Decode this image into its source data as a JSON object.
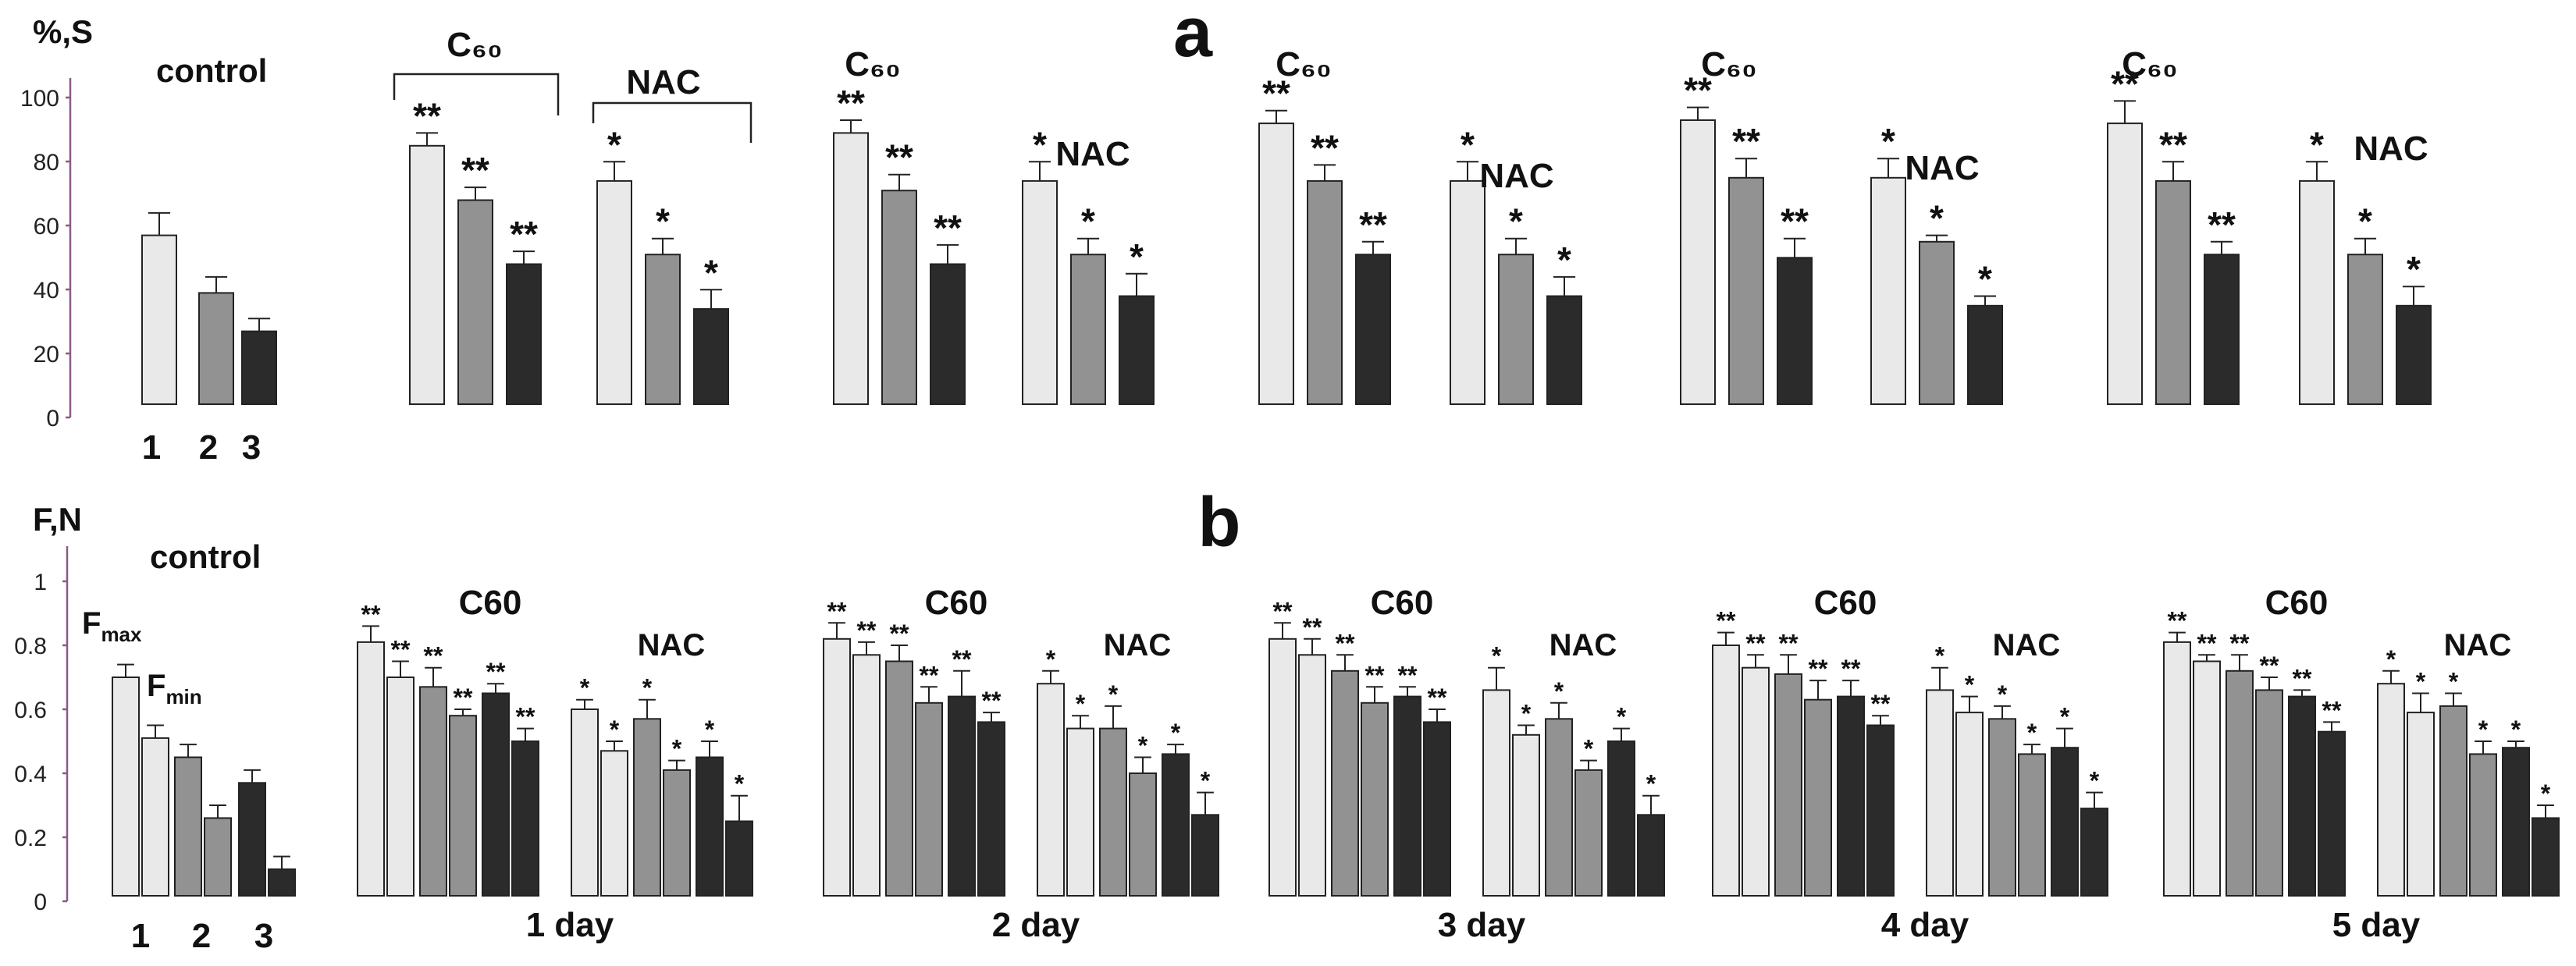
{
  "panel_labels": {
    "a": "a",
    "b": "b"
  },
  "colors": {
    "light": "#e9e9e9",
    "medium": "#929292",
    "dark": "#2b2b2b",
    "axis": "#8a5a86"
  },
  "chart_data": [
    {
      "type": "bar",
      "panel": "a",
      "ylabel": "%,S",
      "ylim": [
        0,
        100
      ],
      "yticks": [
        "0",
        "20",
        "40",
        "60",
        "80",
        "100"
      ],
      "control": {
        "label": "control",
        "categories": [
          "1",
          "2",
          "3"
        ],
        "values": [
          54,
          36,
          24
        ],
        "errors": [
          7,
          5,
          4
        ]
      },
      "groups": [
        {
          "group_label": "C60",
          "treatment": "C₆₀",
          "values": [
            82,
            65,
            45
          ],
          "errors": [
            4,
            4,
            4
          ],
          "marks": [
            "**",
            "**",
            "**"
          ]
        },
        {
          "group_label": "NAC",
          "treatment": "NAC",
          "values": [
            71,
            48,
            31
          ],
          "errors": [
            6,
            5,
            6
          ],
          "marks": [
            "*",
            "*",
            "*"
          ]
        },
        {
          "group_label": "C60",
          "treatment": "C₆₀",
          "values": [
            86,
            68,
            45
          ],
          "errors": [
            4,
            5,
            6
          ],
          "marks": [
            "**",
            "**",
            "**"
          ]
        },
        {
          "group_label": "NAC",
          "treatment": "NAC",
          "values": [
            71,
            48,
            35
          ],
          "errors": [
            6,
            5,
            7
          ],
          "marks": [
            "*",
            "*",
            "*"
          ]
        },
        {
          "group_label": "C60",
          "treatment": "C₆₀",
          "values": [
            89,
            71,
            48
          ],
          "errors": [
            4,
            5,
            4
          ],
          "marks": [
            "**",
            "**",
            "**"
          ]
        },
        {
          "group_label": "NAC",
          "treatment": "NAC",
          "values": [
            71,
            48,
            35
          ],
          "errors": [
            6,
            5,
            6
          ],
          "marks": [
            "*",
            "*",
            "*"
          ]
        },
        {
          "group_label": "C60",
          "treatment": "C₆₀",
          "values": [
            90,
            72,
            47
          ],
          "errors": [
            4,
            6,
            6
          ],
          "marks": [
            "**",
            "**",
            "**"
          ]
        },
        {
          "group_label": "NAC",
          "treatment": "NAC",
          "values": [
            72,
            52,
            32
          ],
          "errors": [
            6,
            2,
            3
          ],
          "marks": [
            "*",
            "*",
            "*"
          ]
        },
        {
          "group_label": "C60",
          "treatment": "C₆₀",
          "values": [
            89,
            71,
            48
          ],
          "errors": [
            7,
            6,
            4
          ],
          "marks": [
            "**",
            "**",
            "**"
          ]
        },
        {
          "group_label": "NAC",
          "treatment": "NAC",
          "values": [
            71,
            48,
            32
          ],
          "errors": [
            6,
            5,
            6
          ],
          "marks": [
            "*",
            "*",
            "*"
          ]
        }
      ]
    },
    {
      "type": "bar",
      "panel": "b",
      "ylabel": "F,N",
      "ylim": [
        0,
        1.1
      ],
      "yticks": [
        "0",
        "0.2",
        "0.4",
        "0.6",
        "0.8",
        "1"
      ],
      "legend": {
        "fmax": "F",
        "fmax_sub": "max",
        "fmin": "F",
        "fmin_sub": "min"
      },
      "control": {
        "label": "control",
        "categories": [
          "1",
          "2",
          "3"
        ],
        "pairs": [
          {
            "fmax": 0.7,
            "fmin": 0.51,
            "err_max": 0.04,
            "err_min": 0.04
          },
          {
            "fmax": 0.45,
            "fmin": 0.26,
            "err_max": 0.04,
            "err_min": 0.04
          },
          {
            "fmax": 0.37,
            "fmin": 0.1,
            "err_max": 0.04,
            "err_min": 0.04
          }
        ]
      },
      "days": [
        {
          "day_label": "1 day",
          "c60_label": "C60",
          "nac_label": "NAC",
          "c60": {
            "fmax": [
              0.81,
              0.67,
              0.65
            ],
            "fmin": [
              0.7,
              0.58,
              0.5
            ],
            "err_max": [
              0.05,
              0.06,
              0.03
            ],
            "err_min": [
              0.05,
              0.02,
              0.04
            ],
            "marks": "**"
          },
          "nac": {
            "fmax": [
              0.6,
              0.57,
              0.45
            ],
            "fmin": [
              0.47,
              0.41,
              0.25
            ],
            "err_max": [
              0.03,
              0.06,
              0.05
            ],
            "err_min": [
              0.03,
              0.03,
              0.08
            ],
            "marks": "*"
          }
        },
        {
          "day_label": "2 day",
          "c60_label": "C60",
          "nac_label": "NAC",
          "c60": {
            "fmax": [
              0.82,
              0.75,
              0.64
            ],
            "fmin": [
              0.77,
              0.62,
              0.56
            ],
            "err_max": [
              0.05,
              0.05,
              0.08
            ],
            "err_min": [
              0.04,
              0.05,
              0.03
            ],
            "marks": "**"
          },
          "nac": {
            "fmax": [
              0.68,
              0.54,
              0.46
            ],
            "fmin": [
              0.54,
              0.4,
              0.27
            ],
            "err_max": [
              0.04,
              0.07,
              0.03
            ],
            "err_min": [
              0.04,
              0.05,
              0.07
            ],
            "marks": "*"
          }
        },
        {
          "day_label": "3 day",
          "c60_label": "C60",
          "nac_label": "NAC",
          "c60": {
            "fmax": [
              0.82,
              0.72,
              0.64
            ],
            "fmin": [
              0.77,
              0.62,
              0.56
            ],
            "err_max": [
              0.05,
              0.05,
              0.03
            ],
            "err_min": [
              0.05,
              0.05,
              0.04
            ],
            "marks": "**"
          },
          "nac": {
            "fmax": [
              0.66,
              0.57,
              0.5
            ],
            "fmin": [
              0.52,
              0.41,
              0.27
            ],
            "err_max": [
              0.07,
              0.05,
              0.04
            ],
            "err_min": [
              0.03,
              0.03,
              0.06
            ],
            "marks": "*"
          }
        },
        {
          "day_label": "4 day",
          "c60_label": "C60",
          "nac_label": "NAC",
          "c60": {
            "fmax": [
              0.8,
              0.71,
              0.64
            ],
            "fmin": [
              0.73,
              0.63,
              0.55
            ],
            "err_max": [
              0.04,
              0.06,
              0.05
            ],
            "err_min": [
              0.04,
              0.06,
              0.03
            ],
            "marks": "**"
          },
          "nac": {
            "fmax": [
              0.66,
              0.57,
              0.48
            ],
            "fmin": [
              0.59,
              0.46,
              0.29
            ],
            "err_max": [
              0.07,
              0.04,
              0.06
            ],
            "err_min": [
              0.05,
              0.03,
              0.05
            ],
            "marks": "*"
          }
        },
        {
          "day_label": "5 day",
          "c60_label": "C60",
          "nac_label": "NAC",
          "c60": {
            "fmax": [
              0.81,
              0.72,
              0.64
            ],
            "fmin": [
              0.75,
              0.66,
              0.53
            ],
            "err_max": [
              0.03,
              0.05,
              0.02
            ],
            "err_min": [
              0.02,
              0.04,
              0.03
            ],
            "marks": "**"
          },
          "nac": {
            "fmax": [
              0.68,
              0.61,
              0.48
            ],
            "fmin": [
              0.59,
              0.46,
              0.26
            ],
            "err_max": [
              0.04,
              0.04,
              0.02
            ],
            "err_min": [
              0.06,
              0.04,
              0.04
            ],
            "marks": "*"
          }
        }
      ]
    }
  ]
}
